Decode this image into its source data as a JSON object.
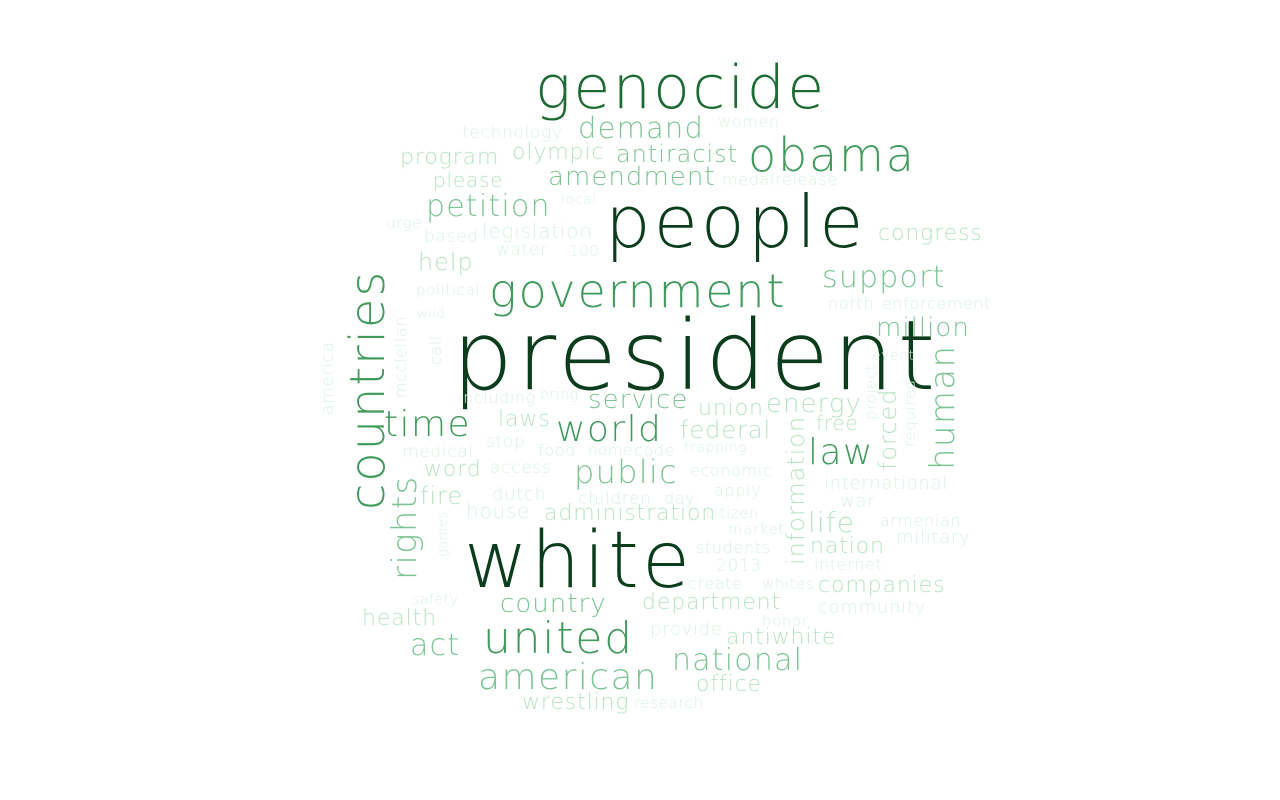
{
  "palette": {
    "darkest": "#0b3d1d",
    "dark": "#1d6b34",
    "mid": "#3f9a5c",
    "light": "#7cc494",
    "pale": "#b9e2c6",
    "faint": "#dcf1e3"
  },
  "words": [
    {
      "text": "president",
      "tone": "darkest",
      "rotated": false
    },
    {
      "text": "white",
      "tone": "darkest",
      "rotated": false
    },
    {
      "text": "people",
      "tone": "darkest",
      "rotated": false
    },
    {
      "text": "genocide",
      "tone": "dark",
      "rotated": false
    },
    {
      "text": "government",
      "tone": "mid",
      "rotated": false
    },
    {
      "text": "countries",
      "tone": "mid",
      "rotated": true
    },
    {
      "text": "obama",
      "tone": "mid",
      "rotated": false
    },
    {
      "text": "united",
      "tone": "mid",
      "rotated": false
    },
    {
      "text": "world",
      "tone": "mid",
      "rotated": false
    },
    {
      "text": "time",
      "tone": "mid",
      "rotated": false
    },
    {
      "text": "law",
      "tone": "mid",
      "rotated": false
    },
    {
      "text": "rights",
      "tone": "light",
      "rotated": true
    },
    {
      "text": "american",
      "tone": "light",
      "rotated": false
    },
    {
      "text": "human",
      "tone": "light",
      "rotated": true
    },
    {
      "text": "public",
      "tone": "light",
      "rotated": false
    },
    {
      "text": "demand",
      "tone": "light",
      "rotated": false
    },
    {
      "text": "national",
      "tone": "light",
      "rotated": false
    },
    {
      "text": "support",
      "tone": "light",
      "rotated": false
    },
    {
      "text": "petition",
      "tone": "light",
      "rotated": false
    },
    {
      "text": "amendment",
      "tone": "light",
      "rotated": false
    },
    {
      "text": "act",
      "tone": "light",
      "rotated": false
    },
    {
      "text": "country",
      "tone": "light",
      "rotated": false
    },
    {
      "text": "antiracist",
      "tone": "light",
      "rotated": false
    },
    {
      "text": "service",
      "tone": "light",
      "rotated": false
    },
    {
      "text": "million",
      "tone": "light",
      "rotated": false
    },
    {
      "text": "olympic",
      "tone": "pale",
      "rotated": false
    },
    {
      "text": "program",
      "tone": "pale",
      "rotated": false
    },
    {
      "text": "please",
      "tone": "pale",
      "rotated": false
    },
    {
      "text": "help",
      "tone": "pale",
      "rotated": false
    },
    {
      "text": "congress",
      "tone": "pale",
      "rotated": false
    },
    {
      "text": "federal",
      "tone": "pale",
      "rotated": false
    },
    {
      "text": "energy",
      "tone": "pale",
      "rotated": false
    },
    {
      "text": "life",
      "tone": "pale",
      "rotated": false
    },
    {
      "text": "department",
      "tone": "pale",
      "rotated": false
    },
    {
      "text": "forced",
      "tone": "pale",
      "rotated": true
    },
    {
      "text": "information",
      "tone": "pale",
      "rotated": true
    },
    {
      "text": "nation",
      "tone": "pale",
      "rotated": false
    },
    {
      "text": "companies",
      "tone": "pale",
      "rotated": false
    },
    {
      "text": "antiwhite",
      "tone": "pale",
      "rotated": false
    },
    {
      "text": "office",
      "tone": "pale",
      "rotated": false
    },
    {
      "text": "wrestling",
      "tone": "pale",
      "rotated": false
    },
    {
      "text": "health",
      "tone": "pale",
      "rotated": false
    },
    {
      "text": "administration",
      "tone": "pale",
      "rotated": false
    },
    {
      "text": "word",
      "tone": "pale",
      "rotated": false
    },
    {
      "text": "fire",
      "tone": "pale",
      "rotated": false
    },
    {
      "text": "union",
      "tone": "pale",
      "rotated": false
    },
    {
      "text": "laws",
      "tone": "pale",
      "rotated": false
    },
    {
      "text": "free",
      "tone": "pale",
      "rotated": false
    },
    {
      "text": "legislation",
      "tone": "faint",
      "rotated": false
    },
    {
      "text": "based",
      "tone": "faint",
      "rotated": false
    },
    {
      "text": "water",
      "tone": "faint",
      "rotated": false
    },
    {
      "text": "political",
      "tone": "faint",
      "rotated": false
    },
    {
      "text": "mcclellan",
      "tone": "faint",
      "rotated": true
    },
    {
      "text": "america",
      "tone": "faint",
      "rotated": true
    },
    {
      "text": "call",
      "tone": "faint",
      "rotated": true
    },
    {
      "text": "technology",
      "tone": "faint",
      "rotated": false
    },
    {
      "text": "women",
      "tone": "faint",
      "rotated": false
    },
    {
      "text": "medalrelease",
      "tone": "faint",
      "rotated": false
    },
    {
      "text": "local",
      "tone": "faint",
      "rotated": false
    },
    {
      "text": "urge",
      "tone": "faint",
      "rotated": false
    },
    {
      "text": "100",
      "tone": "faint",
      "rotated": false
    },
    {
      "text": "north",
      "tone": "faint",
      "rotated": false
    },
    {
      "text": "enforcement",
      "tone": "faint",
      "rotated": false
    },
    {
      "text": "wild",
      "tone": "faint",
      "rotated": false
    },
    {
      "text": "event",
      "tone": "faint",
      "rotated": false
    },
    {
      "text": "project",
      "tone": "faint",
      "rotated": true
    },
    {
      "text": "required",
      "tone": "faint",
      "rotated": true
    },
    {
      "text": "including",
      "tone": "faint",
      "rotated": false
    },
    {
      "text": "bring",
      "tone": "faint",
      "rotated": false
    },
    {
      "text": "stop",
      "tone": "faint",
      "rotated": false
    },
    {
      "text": "medical",
      "tone": "faint",
      "rotated": false
    },
    {
      "text": "food",
      "tone": "faint",
      "rotated": false
    },
    {
      "text": "home",
      "tone": "faint",
      "rotated": false
    },
    {
      "text": "code",
      "tone": "faint",
      "rotated": false
    },
    {
      "text": "trapping",
      "tone": "faint",
      "rotated": false
    },
    {
      "text": "access",
      "tone": "faint",
      "rotated": false
    },
    {
      "text": "economic",
      "tone": "faint",
      "rotated": false
    },
    {
      "text": "international",
      "tone": "faint",
      "rotated": false
    },
    {
      "text": "dutch",
      "tone": "faint",
      "rotated": false
    },
    {
      "text": "children",
      "tone": "faint",
      "rotated": false
    },
    {
      "text": "day",
      "tone": "faint",
      "rotated": false
    },
    {
      "text": "apply",
      "tone": "faint",
      "rotated": false
    },
    {
      "text": "war",
      "tone": "faint",
      "rotated": false
    },
    {
      "text": "house",
      "tone": "faint",
      "rotated": false
    },
    {
      "text": "citizen",
      "tone": "faint",
      "rotated": false
    },
    {
      "text": "market",
      "tone": "faint",
      "rotated": false
    },
    {
      "text": "armenian",
      "tone": "faint",
      "rotated": false
    },
    {
      "text": "military",
      "tone": "faint",
      "rotated": false
    },
    {
      "text": "games",
      "tone": "faint",
      "rotated": true
    },
    {
      "text": "students",
      "tone": "faint",
      "rotated": false
    },
    {
      "text": "2013",
      "tone": "faint",
      "rotated": false
    },
    {
      "text": "internet",
      "tone": "faint",
      "rotated": false
    },
    {
      "text": "create",
      "tone": "faint",
      "rotated": false
    },
    {
      "text": "whites",
      "tone": "faint",
      "rotated": false
    },
    {
      "text": "safety",
      "tone": "faint",
      "rotated": false
    },
    {
      "text": "community",
      "tone": "faint",
      "rotated": false
    },
    {
      "text": "provide",
      "tone": "faint",
      "rotated": false
    },
    {
      "text": "honor",
      "tone": "faint",
      "rotated": false
    },
    {
      "text": "research",
      "tone": "faint",
      "rotated": false
    }
  ]
}
